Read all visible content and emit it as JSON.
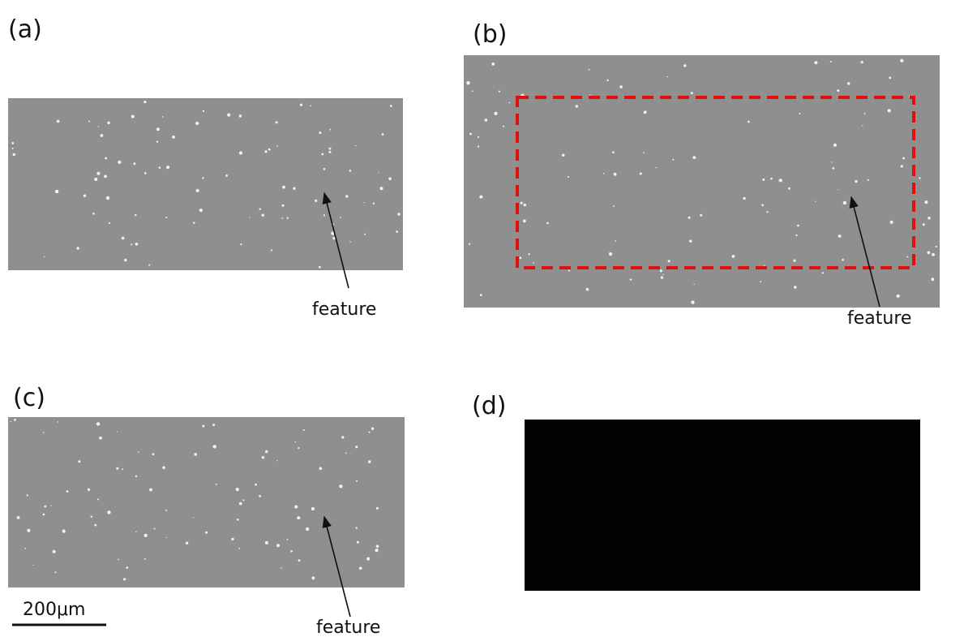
{
  "panels": [
    {
      "label": "(a)",
      "annotation": "feature"
    },
    {
      "label": "(b)",
      "annotation": "feature"
    },
    {
      "label": "(c)",
      "annotation": "feature"
    },
    {
      "label": "(d)"
    }
  ],
  "scale_bar": "200μm"
}
